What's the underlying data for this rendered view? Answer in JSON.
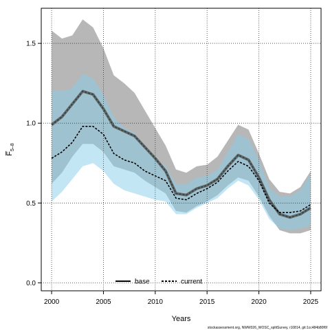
{
  "chart_data": {
    "type": "line",
    "xlabel": "Years",
    "ylabel": "F̅",
    "ylabel_sub": "5–8",
    "xlim": [
      1999,
      2026
    ],
    "ylim": [
      -0.05,
      1.72
    ],
    "x_ticks": [
      2000,
      2005,
      2010,
      2015,
      2020,
      2025
    ],
    "y_ticks": [
      0.0,
      0.5,
      1.0,
      1.5
    ],
    "x_tick_labels": [
      "2000",
      "2005",
      "2010",
      "2015",
      "2020",
      "2025"
    ],
    "y_tick_labels": [
      "0.0",
      "0.5",
      "1.0",
      "1.5"
    ],
    "grid": true,
    "legend_position": "bottom-center",
    "x": [
      2000,
      2001,
      2002,
      2003,
      2004,
      2005,
      2006,
      2007,
      2008,
      2009,
      2010,
      2011,
      2012,
      2013,
      2014,
      2015,
      2016,
      2017,
      2018,
      2019,
      2020,
      2021,
      2022,
      2023,
      2024,
      2025
    ],
    "series": [
      {
        "name": "base",
        "color": "#000000",
        "line_style": "solid",
        "band_color": "#999999",
        "values": [
          0.99,
          1.04,
          1.12,
          1.2,
          1.18,
          1.09,
          0.98,
          0.95,
          0.92,
          0.85,
          0.78,
          0.7,
          0.56,
          0.55,
          0.59,
          0.61,
          0.65,
          0.73,
          0.8,
          0.77,
          0.66,
          0.52,
          0.43,
          0.41,
          0.43,
          0.47
        ],
        "lower": [
          0.62,
          0.69,
          0.79,
          0.87,
          0.87,
          0.82,
          0.73,
          0.71,
          0.69,
          0.64,
          0.6,
          0.56,
          0.45,
          0.44,
          0.48,
          0.51,
          0.55,
          0.61,
          0.66,
          0.64,
          0.54,
          0.42,
          0.33,
          0.31,
          0.31,
          0.33
        ],
        "upper": [
          1.58,
          1.53,
          1.55,
          1.65,
          1.6,
          1.47,
          1.3,
          1.25,
          1.19,
          1.08,
          0.97,
          0.86,
          0.71,
          0.69,
          0.73,
          0.74,
          0.79,
          0.89,
          0.99,
          0.96,
          0.81,
          0.65,
          0.57,
          0.56,
          0.6,
          0.7
        ]
      },
      {
        "name": "current",
        "color": "#000000",
        "line_style": "dashed",
        "band_color": "#87ceeb",
        "values": [
          0.78,
          0.82,
          0.88,
          0.98,
          0.98,
          0.93,
          0.81,
          0.77,
          0.75,
          0.7,
          0.67,
          0.64,
          0.53,
          0.52,
          0.56,
          0.59,
          0.63,
          0.7,
          0.76,
          0.73,
          0.64,
          0.5,
          0.44,
          0.44,
          0.45,
          0.49
        ],
        "lower": [
          0.51,
          0.57,
          0.65,
          0.73,
          0.75,
          0.7,
          0.62,
          0.58,
          0.56,
          0.54,
          0.52,
          0.51,
          0.43,
          0.43,
          0.47,
          0.5,
          0.53,
          0.59,
          0.64,
          0.61,
          0.52,
          0.4,
          0.34,
          0.33,
          0.34,
          0.36
        ],
        "upper": [
          1.21,
          1.2,
          1.22,
          1.31,
          1.28,
          1.18,
          1.04,
          0.97,
          0.94,
          0.86,
          0.78,
          0.73,
          0.62,
          0.62,
          0.66,
          0.67,
          0.71,
          0.82,
          0.93,
          0.9,
          0.77,
          0.6,
          0.54,
          0.54,
          0.58,
          0.68
        ]
      }
    ],
    "footer": "stockassessment.org, NWW026_WOSC_splitSurvey, r10814, git:1cc484b80f6f"
  }
}
